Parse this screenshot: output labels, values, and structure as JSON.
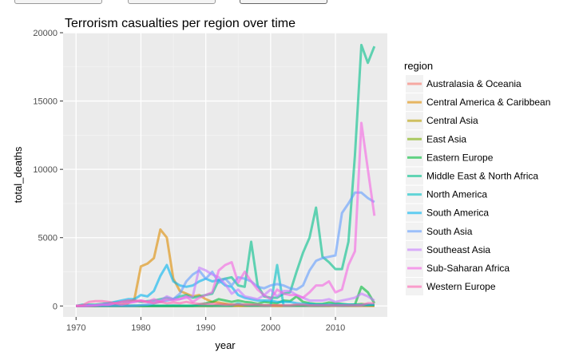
{
  "chart_data": {
    "type": "line",
    "title": "Terrorism casualties per region over time",
    "xlabel": "year",
    "ylabel": "total_deaths",
    "xlim": [
      1968,
      2018
    ],
    "ylim": [
      -800,
      20000
    ],
    "x_ticks": [
      1970,
      1980,
      1990,
      2000,
      2010
    ],
    "y_ticks": [
      0,
      5000,
      10000,
      15000,
      20000
    ],
    "grid": true,
    "legend": {
      "title": "region",
      "position": "right"
    },
    "x": [
      1970,
      1971,
      1972,
      1973,
      1974,
      1975,
      1976,
      1977,
      1978,
      1979,
      1980,
      1981,
      1982,
      1983,
      1984,
      1985,
      1986,
      1987,
      1988,
      1989,
      1990,
      1991,
      1992,
      1993,
      1994,
      1995,
      1996,
      1997,
      1998,
      1999,
      2000,
      2001,
      2002,
      2003,
      2004,
      2005,
      2006,
      2007,
      2008,
      2009,
      2010,
      2011,
      2012,
      2013,
      2014,
      2015,
      2016
    ],
    "series": [
      {
        "name": "Australasia & Oceania",
        "color": "#F8766D",
        "values": [
          0,
          0,
          0,
          0,
          0,
          0,
          0,
          0,
          0,
          0,
          0,
          0,
          0,
          0,
          0,
          0,
          0,
          0,
          0,
          5,
          0,
          0,
          0,
          0,
          0,
          0,
          0,
          0,
          0,
          0,
          0,
          0,
          0,
          0,
          0,
          0,
          0,
          0,
          0,
          0,
          0,
          0,
          0,
          0,
          0,
          0,
          0
        ]
      },
      {
        "name": "Central America & Caribbean",
        "color": "#DE8C00",
        "values": [
          0,
          0,
          20,
          0,
          30,
          50,
          60,
          100,
          200,
          500,
          2900,
          3100,
          3500,
          5600,
          5000,
          2000,
          1100,
          900,
          700,
          800,
          500,
          300,
          250,
          150,
          100,
          100,
          80,
          60,
          50,
          40,
          30,
          30,
          20,
          20,
          20,
          20,
          30,
          50,
          60,
          40,
          40,
          40,
          30,
          30,
          40,
          40,
          40
        ]
      },
      {
        "name": "Central Asia",
        "color": "#B79F00",
        "values": [
          0,
          0,
          0,
          0,
          0,
          0,
          0,
          0,
          0,
          0,
          0,
          0,
          0,
          0,
          0,
          0,
          0,
          0,
          0,
          0,
          0,
          0,
          100,
          150,
          50,
          50,
          30,
          40,
          30,
          50,
          60,
          30,
          20,
          20,
          60,
          50,
          20,
          10,
          10,
          10,
          100,
          30,
          30,
          20,
          30,
          20,
          20
        ]
      },
      {
        "name": "East Asia",
        "color": "#7CAE00",
        "values": [
          0,
          0,
          0,
          0,
          0,
          0,
          0,
          0,
          0,
          0,
          0,
          0,
          0,
          0,
          0,
          0,
          0,
          0,
          0,
          0,
          0,
          0,
          0,
          0,
          0,
          30,
          20,
          20,
          30,
          10,
          20,
          20,
          20,
          20,
          20,
          20,
          20,
          20,
          30,
          50,
          30,
          30,
          30,
          100,
          150,
          100,
          50
        ]
      },
      {
        "name": "Eastern Europe",
        "color": "#00BA38",
        "values": [
          0,
          0,
          0,
          0,
          0,
          0,
          0,
          0,
          0,
          0,
          0,
          0,
          0,
          0,
          0,
          0,
          0,
          0,
          0,
          100,
          200,
          300,
          500,
          400,
          300,
          400,
          300,
          250,
          150,
          300,
          250,
          200,
          400,
          350,
          700,
          300,
          200,
          150,
          150,
          250,
          200,
          150,
          100,
          100,
          1400,
          1000,
          200
        ]
      },
      {
        "name": "Middle East & North Africa",
        "color": "#00C08B",
        "values": [
          0,
          50,
          100,
          100,
          150,
          200,
          250,
          300,
          350,
          400,
          300,
          350,
          400,
          500,
          600,
          500,
          700,
          800,
          600,
          700,
          800,
          900,
          1900,
          2000,
          2100,
          1500,
          1400,
          4700,
          1500,
          700,
          600,
          600,
          900,
          1000,
          2500,
          3900,
          5000,
          7200,
          3600,
          3200,
          2700,
          2700,
          4700,
          11000,
          19100,
          17800,
          19000
        ]
      },
      {
        "name": "North America",
        "color": "#00BFC4",
        "values": [
          0,
          100,
          50,
          50,
          50,
          40,
          50,
          30,
          20,
          30,
          30,
          20,
          20,
          20,
          20,
          30,
          20,
          20,
          20,
          20,
          20,
          20,
          20,
          20,
          20,
          200,
          50,
          20,
          30,
          20,
          20,
          3000,
          20,
          20,
          20,
          20,
          20,
          20,
          20,
          30,
          30,
          20,
          30,
          30,
          40,
          60,
          80
        ]
      },
      {
        "name": "South America",
        "color": "#00B4F0",
        "values": [
          0,
          0,
          50,
          50,
          100,
          200,
          300,
          400,
          500,
          500,
          800,
          700,
          1100,
          2200,
          3000,
          1800,
          1500,
          1400,
          1500,
          1800,
          2000,
          1800,
          1900,
          1500,
          1400,
          800,
          600,
          500,
          400,
          400,
          400,
          300,
          300,
          300,
          200,
          150,
          150,
          100,
          100,
          100,
          100,
          100,
          100,
          100,
          100,
          100,
          100
        ]
      },
      {
        "name": "South Asia",
        "color": "#619CFF",
        "values": [
          0,
          0,
          0,
          0,
          0,
          0,
          0,
          0,
          0,
          0,
          50,
          100,
          200,
          300,
          400,
          500,
          900,
          1800,
          2300,
          2600,
          2000,
          2500,
          1700,
          2000,
          1500,
          2100,
          2000,
          1800,
          1400,
          1300,
          1500,
          1600,
          1500,
          1300,
          1200,
          1500,
          2600,
          3300,
          3500,
          3600,
          3700,
          6800,
          7500,
          8300,
          8300,
          7900,
          7600
        ]
      },
      {
        "name": "Southeast Asia",
        "color": "#C77CFF",
        "values": [
          0,
          0,
          50,
          50,
          100,
          100,
          200,
          300,
          300,
          300,
          400,
          300,
          300,
          400,
          700,
          500,
          500,
          600,
          700,
          2800,
          2600,
          2300,
          2100,
          1600,
          900,
          1200,
          700,
          600,
          500,
          800,
          1200,
          700,
          1100,
          1100,
          800,
          600,
          400,
          400,
          400,
          500,
          300,
          400,
          500,
          600,
          900,
          700,
          400
        ]
      },
      {
        "name": "Sub-Saharan Africa",
        "color": "#F564E3",
        "values": [
          0,
          0,
          0,
          50,
          100,
          100,
          200,
          100,
          200,
          300,
          400,
          300,
          500,
          300,
          500,
          400,
          500,
          700,
          300,
          600,
          800,
          1000,
          2600,
          3000,
          3200,
          1700,
          2500,
          1800,
          1200,
          800,
          500,
          1200,
          900,
          800,
          800,
          600,
          1000,
          1500,
          1500,
          1800,
          1000,
          1200,
          3000,
          4000,
          13400,
          10000,
          6600
        ]
      },
      {
        "name": "Western Europe",
        "color": "#FF64B0",
        "values": [
          0,
          50,
          300,
          350,
          350,
          300,
          200,
          300,
          400,
          400,
          350,
          300,
          200,
          300,
          200,
          250,
          200,
          300,
          200,
          150,
          150,
          150,
          150,
          100,
          100,
          100,
          100,
          100,
          100,
          50,
          50,
          50,
          50,
          50,
          100,
          100,
          50,
          50,
          50,
          50,
          50,
          50,
          50,
          50,
          50,
          200,
          200
        ]
      }
    ]
  }
}
